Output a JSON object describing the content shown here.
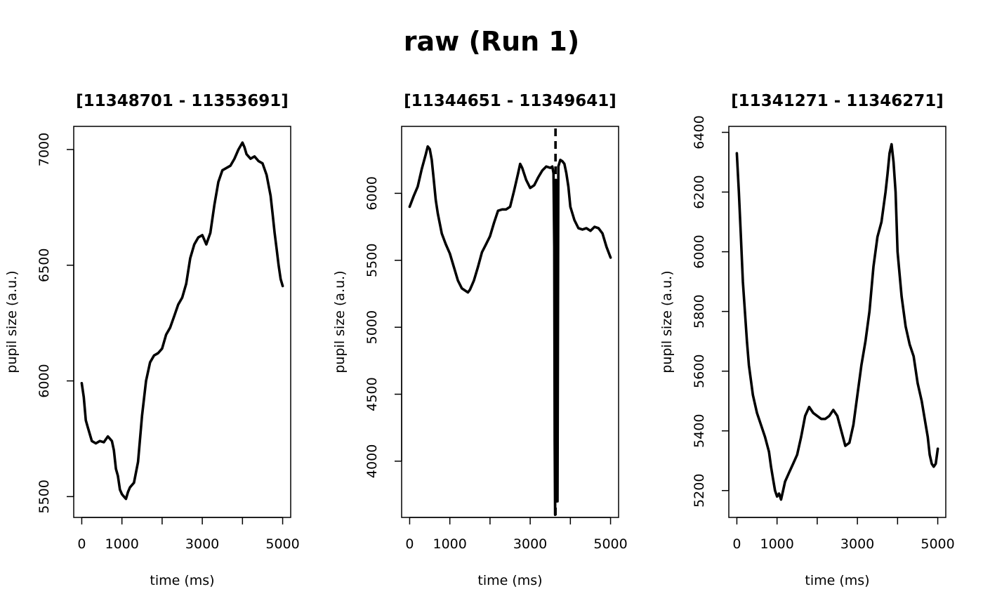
{
  "title": "raw (Run 1)",
  "chart_data": [
    {
      "type": "line",
      "title": "[11348701 - 11353691]",
      "xlabel": "time (ms)",
      "ylabel": "pupil size (a.u.)",
      "xlim": [
        -200,
        5200
      ],
      "ylim": [
        5410,
        7100
      ],
      "x_ticks": [
        0,
        1000,
        2000,
        3000,
        4000,
        5000
      ],
      "x_tick_labels": [
        "0",
        "1000",
        "",
        "3000",
        "",
        "5000"
      ],
      "y_ticks": [
        5500,
        6000,
        6500,
        7000
      ],
      "y_tick_labels": [
        "5500",
        "6000",
        "6500",
        "7000"
      ],
      "grid": false,
      "series": [
        {
          "x": [
            0,
            50,
            100,
            150,
            250,
            350,
            450,
            550,
            650,
            750,
            800,
            850,
            900,
            950,
            1000,
            1050,
            1100,
            1150,
            1200,
            1300,
            1400,
            1500,
            1600,
            1700,
            1800,
            1900,
            2000,
            2100,
            2200,
            2300,
            2400,
            2500,
            2600,
            2700,
            2800,
            2900,
            3000,
            3050,
            3100,
            3200,
            3300,
            3400,
            3500,
            3600,
            3700,
            3800,
            3900,
            4000,
            4050,
            4100,
            4200,
            4300,
            4400,
            4500,
            4600,
            4700,
            4750,
            4800,
            4850,
            4900,
            4950,
            5000
          ],
          "y": [
            5990,
            5930,
            5830,
            5800,
            5740,
            5730,
            5740,
            5735,
            5760,
            5740,
            5700,
            5620,
            5590,
            5530,
            5510,
            5500,
            5490,
            5520,
            5540,
            5560,
            5650,
            5850,
            6000,
            6080,
            6110,
            6120,
            6140,
            6200,
            6230,
            6280,
            6330,
            6360,
            6420,
            6530,
            6590,
            6620,
            6630,
            6610,
            6590,
            6640,
            6760,
            6860,
            6910,
            6920,
            6930,
            6960,
            7000,
            7030,
            7010,
            6980,
            6960,
            6970,
            6950,
            6940,
            6890,
            6800,
            6720,
            6640,
            6570,
            6500,
            6440,
            6410
          ]
        }
      ]
    },
    {
      "type": "line",
      "title": "[11344651 - 11349641]",
      "xlabel": "time (ms)",
      "ylabel": "pupil size (a.u.)",
      "xlim": [
        -200,
        5200
      ],
      "ylim": [
        3580,
        6500
      ],
      "x_ticks": [
        0,
        1000,
        2000,
        3000,
        4000,
        5000
      ],
      "x_tick_labels": [
        "0",
        "1000",
        "",
        "3000",
        "",
        "5000"
      ],
      "y_ticks": [
        4000,
        4500,
        5000,
        5500,
        6000
      ],
      "y_tick_labels": [
        "4000",
        "4500",
        "5000",
        "5500",
        "6000"
      ],
      "grid": false,
      "vline_x": 3630,
      "series": [
        {
          "x": [
            0,
            100,
            200,
            300,
            400,
            450,
            500,
            550,
            600,
            650,
            700,
            800,
            900,
            1000,
            1100,
            1200,
            1300,
            1400,
            1450,
            1500,
            1600,
            1700,
            1800,
            1900,
            2000,
            2100,
            2200,
            2300,
            2400,
            2500,
            2600,
            2700,
            2750,
            2800,
            2900,
            3000,
            3100,
            3200,
            3300,
            3400,
            3500,
            3550,
            3580,
            3600,
            3610,
            3620,
            3630,
            3640,
            3650,
            3660,
            3680,
            3700,
            3750,
            3800,
            3850,
            3900,
            3950,
            4000,
            4100,
            4200,
            4300,
            4400,
            4500,
            4600,
            4700,
            4800,
            4900,
            5000
          ],
          "y": [
            5900,
            5980,
            6050,
            6180,
            6290,
            6350,
            6330,
            6250,
            6100,
            5950,
            5850,
            5700,
            5620,
            5550,
            5450,
            5350,
            5290,
            5270,
            5260,
            5280,
            5350,
            5450,
            5560,
            5620,
            5680,
            5780,
            5870,
            5880,
            5880,
            5900,
            6020,
            6150,
            6220,
            6190,
            6100,
            6040,
            6060,
            6120,
            6170,
            6200,
            6190,
            6200,
            6150,
            5600,
            4150,
            3600,
            4800,
            6100,
            5800,
            4000,
            3700,
            6200,
            6250,
            6240,
            6220,
            6150,
            6050,
            5900,
            5800,
            5740,
            5730,
            5740,
            5720,
            5750,
            5740,
            5700,
            5600,
            5520
          ]
        }
      ]
    },
    {
      "type": "line",
      "title": "[11341271 - 11346271]",
      "xlabel": "time (ms)",
      "ylabel": "pupil size (a.u.)",
      "xlim": [
        -200,
        5200
      ],
      "ylim": [
        5110,
        6420
      ],
      "x_ticks": [
        0,
        1000,
        2000,
        3000,
        4000,
        5000
      ],
      "x_tick_labels": [
        "0",
        "1000",
        "",
        "3000",
        "",
        "5000"
      ],
      "y_ticks": [
        5200,
        5400,
        5600,
        5800,
        6000,
        6200,
        6400
      ],
      "y_tick_labels": [
        "5200",
        "5400",
        "5600",
        "5800",
        "6000",
        "6200",
        "6400"
      ],
      "grid": false,
      "series": [
        {
          "x": [
            0,
            50,
            100,
            150,
            200,
            250,
            300,
            400,
            500,
            600,
            700,
            800,
            850,
            900,
            950,
            1000,
            1050,
            1100,
            1150,
            1200,
            1300,
            1400,
            1500,
            1600,
            1700,
            1800,
            1900,
            2000,
            2100,
            2200,
            2300,
            2400,
            2500,
            2600,
            2700,
            2800,
            2900,
            3000,
            3100,
            3200,
            3300,
            3400,
            3500,
            3600,
            3700,
            3750,
            3800,
            3850,
            3900,
            3950,
            4000,
            4100,
            4200,
            4300,
            4400,
            4500,
            4600,
            4700,
            4750,
            4800,
            4850,
            4900,
            4950,
            5000
          ],
          "y": [
            6330,
            6200,
            6050,
            5900,
            5800,
            5700,
            5620,
            5520,
            5460,
            5420,
            5380,
            5330,
            5280,
            5240,
            5200,
            5180,
            5190,
            5170,
            5200,
            5230,
            5260,
            5290,
            5320,
            5380,
            5450,
            5480,
            5460,
            5450,
            5440,
            5440,
            5450,
            5470,
            5450,
            5400,
            5350,
            5360,
            5420,
            5520,
            5620,
            5700,
            5800,
            5950,
            6050,
            6100,
            6200,
            6260,
            6330,
            6360,
            6300,
            6200,
            6000,
            5850,
            5750,
            5690,
            5650,
            5560,
            5500,
            5420,
            5380,
            5320,
            5290,
            5280,
            5290,
            5340
          ]
        }
      ]
    }
  ]
}
